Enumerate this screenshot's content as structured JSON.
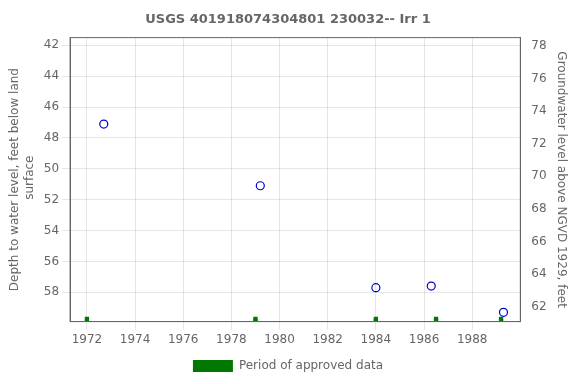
{
  "chart_data": {
    "type": "scatter",
    "title": "USGS 401918074304801 230032-- Irr 1",
    "series": [
      {
        "color": "#0000cc",
        "marker": "circle",
        "x": [
          1972.7,
          1979.2,
          1984.0,
          1986.3,
          1989.3
        ],
        "values": [
          47.1,
          51.1,
          57.7,
          57.6,
          59.3
        ]
      },
      {
        "name": "Period of approved data",
        "color": "#007700",
        "marker": "square",
        "x": [
          1972.0,
          1979.0,
          1984.0,
          1986.5,
          1989.2,
          1972.0,
          1979.0,
          1984.0,
          1986.5,
          1989.2
        ],
        "values": [
          59.85807,
          59.85807,
          59.85807,
          59.85807,
          59.85807,
          59.72,
          59.72,
          59.72,
          59.72,
          59.72
        ]
      }
    ],
    "xlim": [
      1971.3,
      1990.0
    ],
    "xticks": [
      1972,
      1974,
      1976,
      1978,
      1980,
      1982,
      1984,
      1986,
      1988
    ],
    "ylim": [
      59.9,
      41.5
    ],
    "yticks": [
      42,
      44,
      46,
      48,
      50,
      52,
      54,
      56,
      58
    ],
    "y2lim": [
      61.1,
      78.5
    ],
    "y2ticks": [
      62,
      64,
      66,
      68,
      70,
      72,
      74,
      76,
      78
    ],
    "ylabel": "Depth to water level, feet below land\n surface",
    "y2label": "Groundwater level above NGVD 1929, feet",
    "grid": true,
    "legend": "bottom"
  }
}
